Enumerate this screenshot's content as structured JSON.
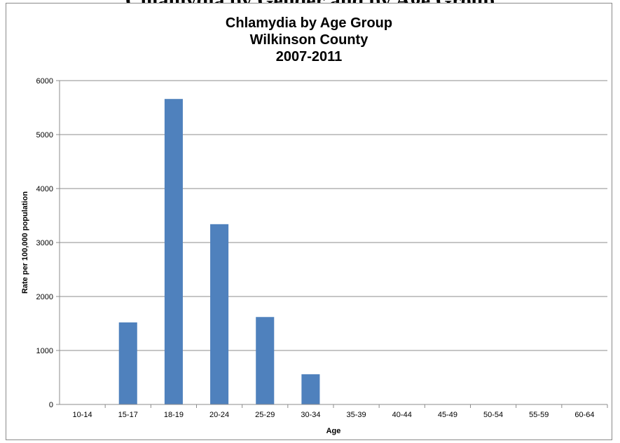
{
  "page_heading": "Chlamydia by Gender and by Age Group",
  "chart_data": {
    "type": "bar",
    "title_lines": [
      "Chlamydia by Age Group",
      "Wilkinson County",
      "2007-2011"
    ],
    "xlabel": "Age",
    "ylabel": "Rate per 100,000 population",
    "categories": [
      "10-14",
      "15-17",
      "18-19",
      "20-24",
      "25-29",
      "30-34",
      "35-39",
      "40-44",
      "45-49",
      "50-54",
      "55-59",
      "60-64"
    ],
    "values": [
      0,
      1520,
      5660,
      3340,
      1620,
      560,
      0,
      0,
      0,
      0,
      0,
      0
    ],
    "ylim": [
      0,
      6000
    ],
    "yticks": [
      0,
      1000,
      2000,
      3000,
      4000,
      5000,
      6000
    ],
    "grid": true,
    "bar_color": "#4f81bd"
  }
}
